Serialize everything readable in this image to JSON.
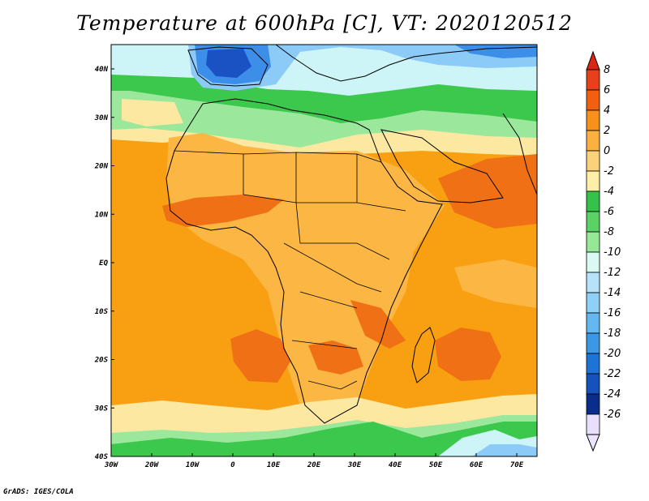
{
  "title": "Temperature at 600hPa [C], VT: 2020120512",
  "credit": "GrADS: IGES/COLA",
  "lat_labels": [
    "40N",
    "30N",
    "20N",
    "10N",
    "EQ",
    "10S",
    "20S",
    "30S",
    "40S"
  ],
  "lon_labels": [
    "30W",
    "20W",
    "10W",
    "0",
    "10E",
    "20E",
    "30E",
    "40E",
    "50E",
    "60E",
    "70E"
  ],
  "colorbar": {
    "labels": [
      "8",
      "6",
      "4",
      "2",
      "0",
      "-2",
      "-4",
      "-6",
      "-8",
      "-10",
      "-12",
      "-14",
      "-16",
      "-18",
      "-20",
      "-22",
      "-24",
      "-26"
    ],
    "colors": [
      "#e8401a",
      "#f25f10",
      "#f8901c",
      "#fbb040",
      "#fbd27a",
      "#fdf0a6",
      "#34c24a",
      "#5ad266",
      "#96e896",
      "#d9f9f2",
      "#b6e2fa",
      "#8fd0f8",
      "#64b8f0",
      "#3a98e6",
      "#1e74d6",
      "#1452bc",
      "#0a2d8c",
      "#e8e0fa"
    ],
    "top_arrow_color": "#dc2414",
    "bottom_arrow_color": "#ece4fc"
  },
  "field_colors": {
    "ocean_warm": "#f8a012",
    "land_warm": "#fbb644",
    "hot": "#f07016",
    "cool_yellow": "#fde8a2",
    "green": "#3cc84c",
    "light_green": "#9be89c",
    "cyan": "#cdf4f6",
    "light_blue": "#8ccaf8",
    "blue": "#3c8ee8",
    "dark_blue": "#1a52c4"
  }
}
